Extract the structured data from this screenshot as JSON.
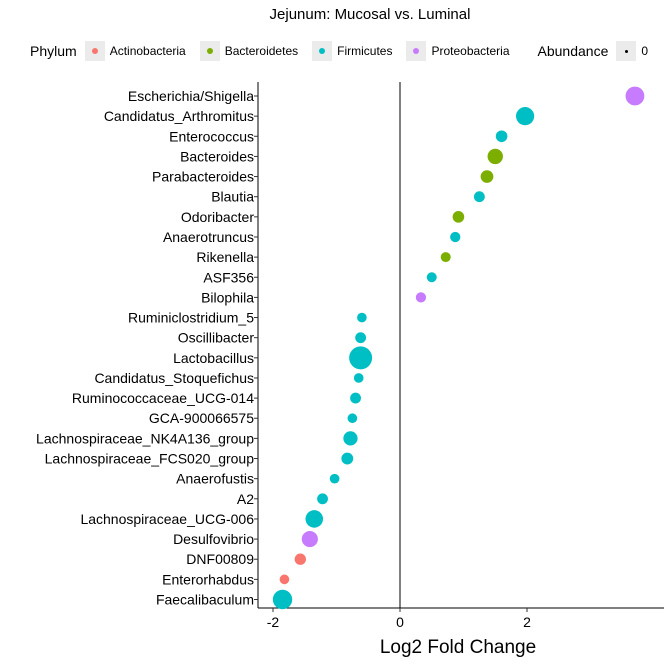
{
  "chart_data": {
    "type": "scatter",
    "title": "Jejunum: Mucosal vs. Luminal",
    "xlabel": "Log2 Fold Change",
    "ylabel": "",
    "xlim": [
      -2.2,
      4.0
    ],
    "xticks": [
      -2,
      0,
      2
    ],
    "grid": false,
    "legend_placement": "top",
    "color_legend": {
      "title": "Phylum",
      "entries": [
        {
          "name": "Actinobacteria",
          "color": "#F8766D"
        },
        {
          "name": "Bacteroidetes",
          "color": "#7CAE00"
        },
        {
          "name": "Firmicutes",
          "color": "#00BFC4"
        },
        {
          "name": "Proteobacteria",
          "color": "#C77CFF"
        }
      ]
    },
    "size_legend": {
      "title": "Abundance",
      "first_label": "0"
    },
    "categories": [
      "Escherichia/Shigella",
      "Candidatus_Arthromitus",
      "Enterococcus",
      "Bacteroides",
      "Parabacteroides",
      "Blautia",
      "Odoribacter",
      "Anaerotruncus",
      "Rikenella",
      "ASF356",
      "Bilophila",
      "Ruminiclostridium_5",
      "Oscillibacter",
      "Lactobacillus",
      "Candidatus_Stoquefichus",
      "Ruminococcaceae_UCG-014",
      "GCA-900066575",
      "Lachnospiraceae_NK4A136_group",
      "Lachnospiraceae_FCS020_group",
      "Anaerofustis",
      "A2",
      "Lachnospiraceae_UCG-006",
      "Desulfovibrio",
      "DNF00809",
      "Enterorhabdus",
      "Faecalibaculum"
    ],
    "points": [
      {
        "taxon": "Escherichia/Shigella",
        "log2fc": 3.7,
        "phylum": "Proteobacteria",
        "abundance": 0.6
      },
      {
        "taxon": "Candidatus_Arthromitus",
        "log2fc": 1.97,
        "phylum": "Firmicutes",
        "abundance": 0.55
      },
      {
        "taxon": "Enterococcus",
        "log2fc": 1.6,
        "phylum": "Firmicutes",
        "abundance": 0.15
      },
      {
        "taxon": "Bacteroides",
        "log2fc": 1.5,
        "phylum": "Bacteroidetes",
        "abundance": 0.35
      },
      {
        "taxon": "Parabacteroides",
        "log2fc": 1.37,
        "phylum": "Bacteroidetes",
        "abundance": 0.2
      },
      {
        "taxon": "Blautia",
        "log2fc": 1.25,
        "phylum": "Firmicutes",
        "abundance": 0.12
      },
      {
        "taxon": "Odoribacter",
        "log2fc": 0.92,
        "phylum": "Bacteroidetes",
        "abundance": 0.15
      },
      {
        "taxon": "Anaerotruncus",
        "log2fc": 0.87,
        "phylum": "Firmicutes",
        "abundance": 0.1
      },
      {
        "taxon": "Rikenella",
        "log2fc": 0.72,
        "phylum": "Bacteroidetes",
        "abundance": 0.09
      },
      {
        "taxon": "ASF356",
        "log2fc": 0.5,
        "phylum": "Firmicutes",
        "abundance": 0.09
      },
      {
        "taxon": "Bilophila",
        "log2fc": 0.33,
        "phylum": "Proteobacteria",
        "abundance": 0.1
      },
      {
        "taxon": "Ruminiclostridium_5",
        "log2fc": -0.6,
        "phylum": "Firmicutes",
        "abundance": 0.08
      },
      {
        "taxon": "Oscillibacter",
        "log2fc": -0.62,
        "phylum": "Firmicutes",
        "abundance": 0.12
      },
      {
        "taxon": "Lactobacillus",
        "log2fc": -0.62,
        "phylum": "Firmicutes",
        "abundance": 1.0
      },
      {
        "taxon": "Candidatus_Stoquefichus",
        "log2fc": -0.65,
        "phylum": "Firmicutes",
        "abundance": 0.08
      },
      {
        "taxon": "Ruminococcaceae_UCG-014",
        "log2fc": -0.7,
        "phylum": "Firmicutes",
        "abundance": 0.12
      },
      {
        "taxon": "GCA-900066575",
        "log2fc": -0.75,
        "phylum": "Firmicutes",
        "abundance": 0.08
      },
      {
        "taxon": "Lachnospiraceae_NK4A136_group",
        "log2fc": -0.78,
        "phylum": "Firmicutes",
        "abundance": 0.28
      },
      {
        "taxon": "Lachnospiraceae_FCS020_group",
        "log2fc": -0.83,
        "phylum": "Firmicutes",
        "abundance": 0.16
      },
      {
        "taxon": "Anaerofustis",
        "log2fc": -1.03,
        "phylum": "Firmicutes",
        "abundance": 0.08
      },
      {
        "taxon": "A2",
        "log2fc": -1.22,
        "phylum": "Firmicutes",
        "abundance": 0.12
      },
      {
        "taxon": "Lachnospiraceae_UCG-006",
        "log2fc": -1.35,
        "phylum": "Firmicutes",
        "abundance": 0.5
      },
      {
        "taxon": "Desulfovibrio",
        "log2fc": -1.42,
        "phylum": "Proteobacteria",
        "abundance": 0.4
      },
      {
        "taxon": "DNF00809",
        "log2fc": -1.57,
        "phylum": "Actinobacteria",
        "abundance": 0.14
      },
      {
        "taxon": "Enterorhabdus",
        "log2fc": -1.82,
        "phylum": "Actinobacteria",
        "abundance": 0.08
      },
      {
        "taxon": "Faecalibaculum",
        "log2fc": -1.85,
        "phylum": "Firmicutes",
        "abundance": 0.65
      }
    ]
  }
}
